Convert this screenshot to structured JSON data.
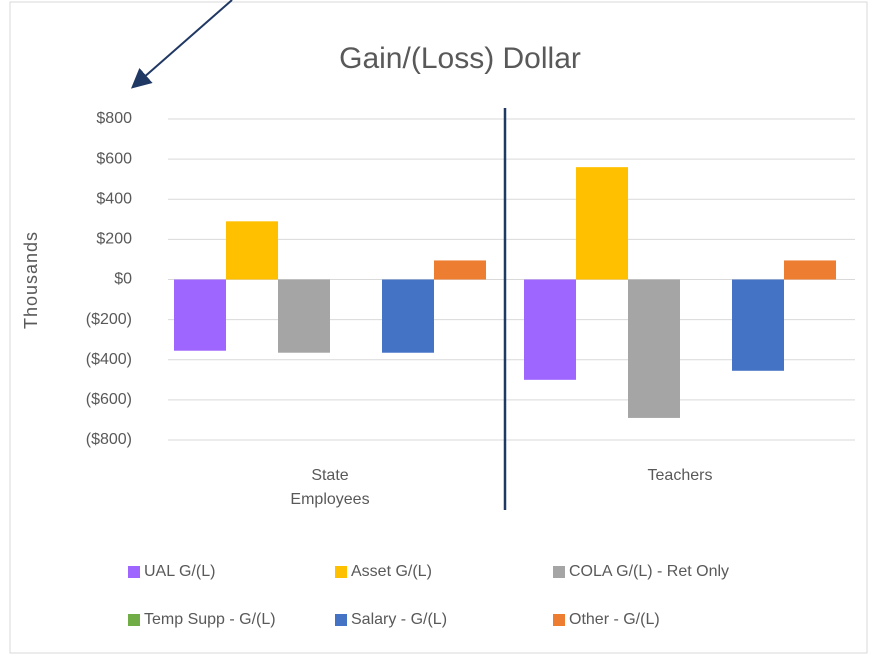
{
  "chart_data": {
    "type": "bar",
    "title": "Gain/(Loss) Dollar",
    "y_label": "Thousands",
    "categories": [
      "State Employees",
      "Teachers"
    ],
    "series": [
      {
        "name": "UAL G/(L)",
        "color": "#9f66ff",
        "values": [
          -355,
          -500
        ]
      },
      {
        "name": "Asset G/(L)",
        "color": "#ffc000",
        "values": [
          290,
          560
        ]
      },
      {
        "name": "COLA G/(L) - Ret Only",
        "color": "#a5a5a5",
        "values": [
          -365,
          -690
        ]
      },
      {
        "name": "Temp Supp - G/(L)",
        "color": "#70ad47",
        "values": [
          0,
          0
        ]
      },
      {
        "name": "Salary - G/(L)",
        "color": "#4472c4",
        "values": [
          -365,
          -455
        ]
      },
      {
        "name": "Other - G/(L)",
        "color": "#ed7d31",
        "values": [
          95,
          95
        ]
      }
    ],
    "ylim": [
      -800,
      800
    ],
    "yticks": [
      {
        "value": -800,
        "label": "($800)"
      },
      {
        "value": -600,
        "label": "($600)"
      },
      {
        "value": -400,
        "label": "($400)"
      },
      {
        "value": -200,
        "label": "($200)"
      },
      {
        "value": 0,
        "label": "$0"
      },
      {
        "value": 200,
        "label": "$200"
      },
      {
        "value": 400,
        "label": "$400"
      },
      {
        "value": 600,
        "label": "$600"
      },
      {
        "value": 800,
        "label": "$800"
      }
    ],
    "grid": true
  }
}
